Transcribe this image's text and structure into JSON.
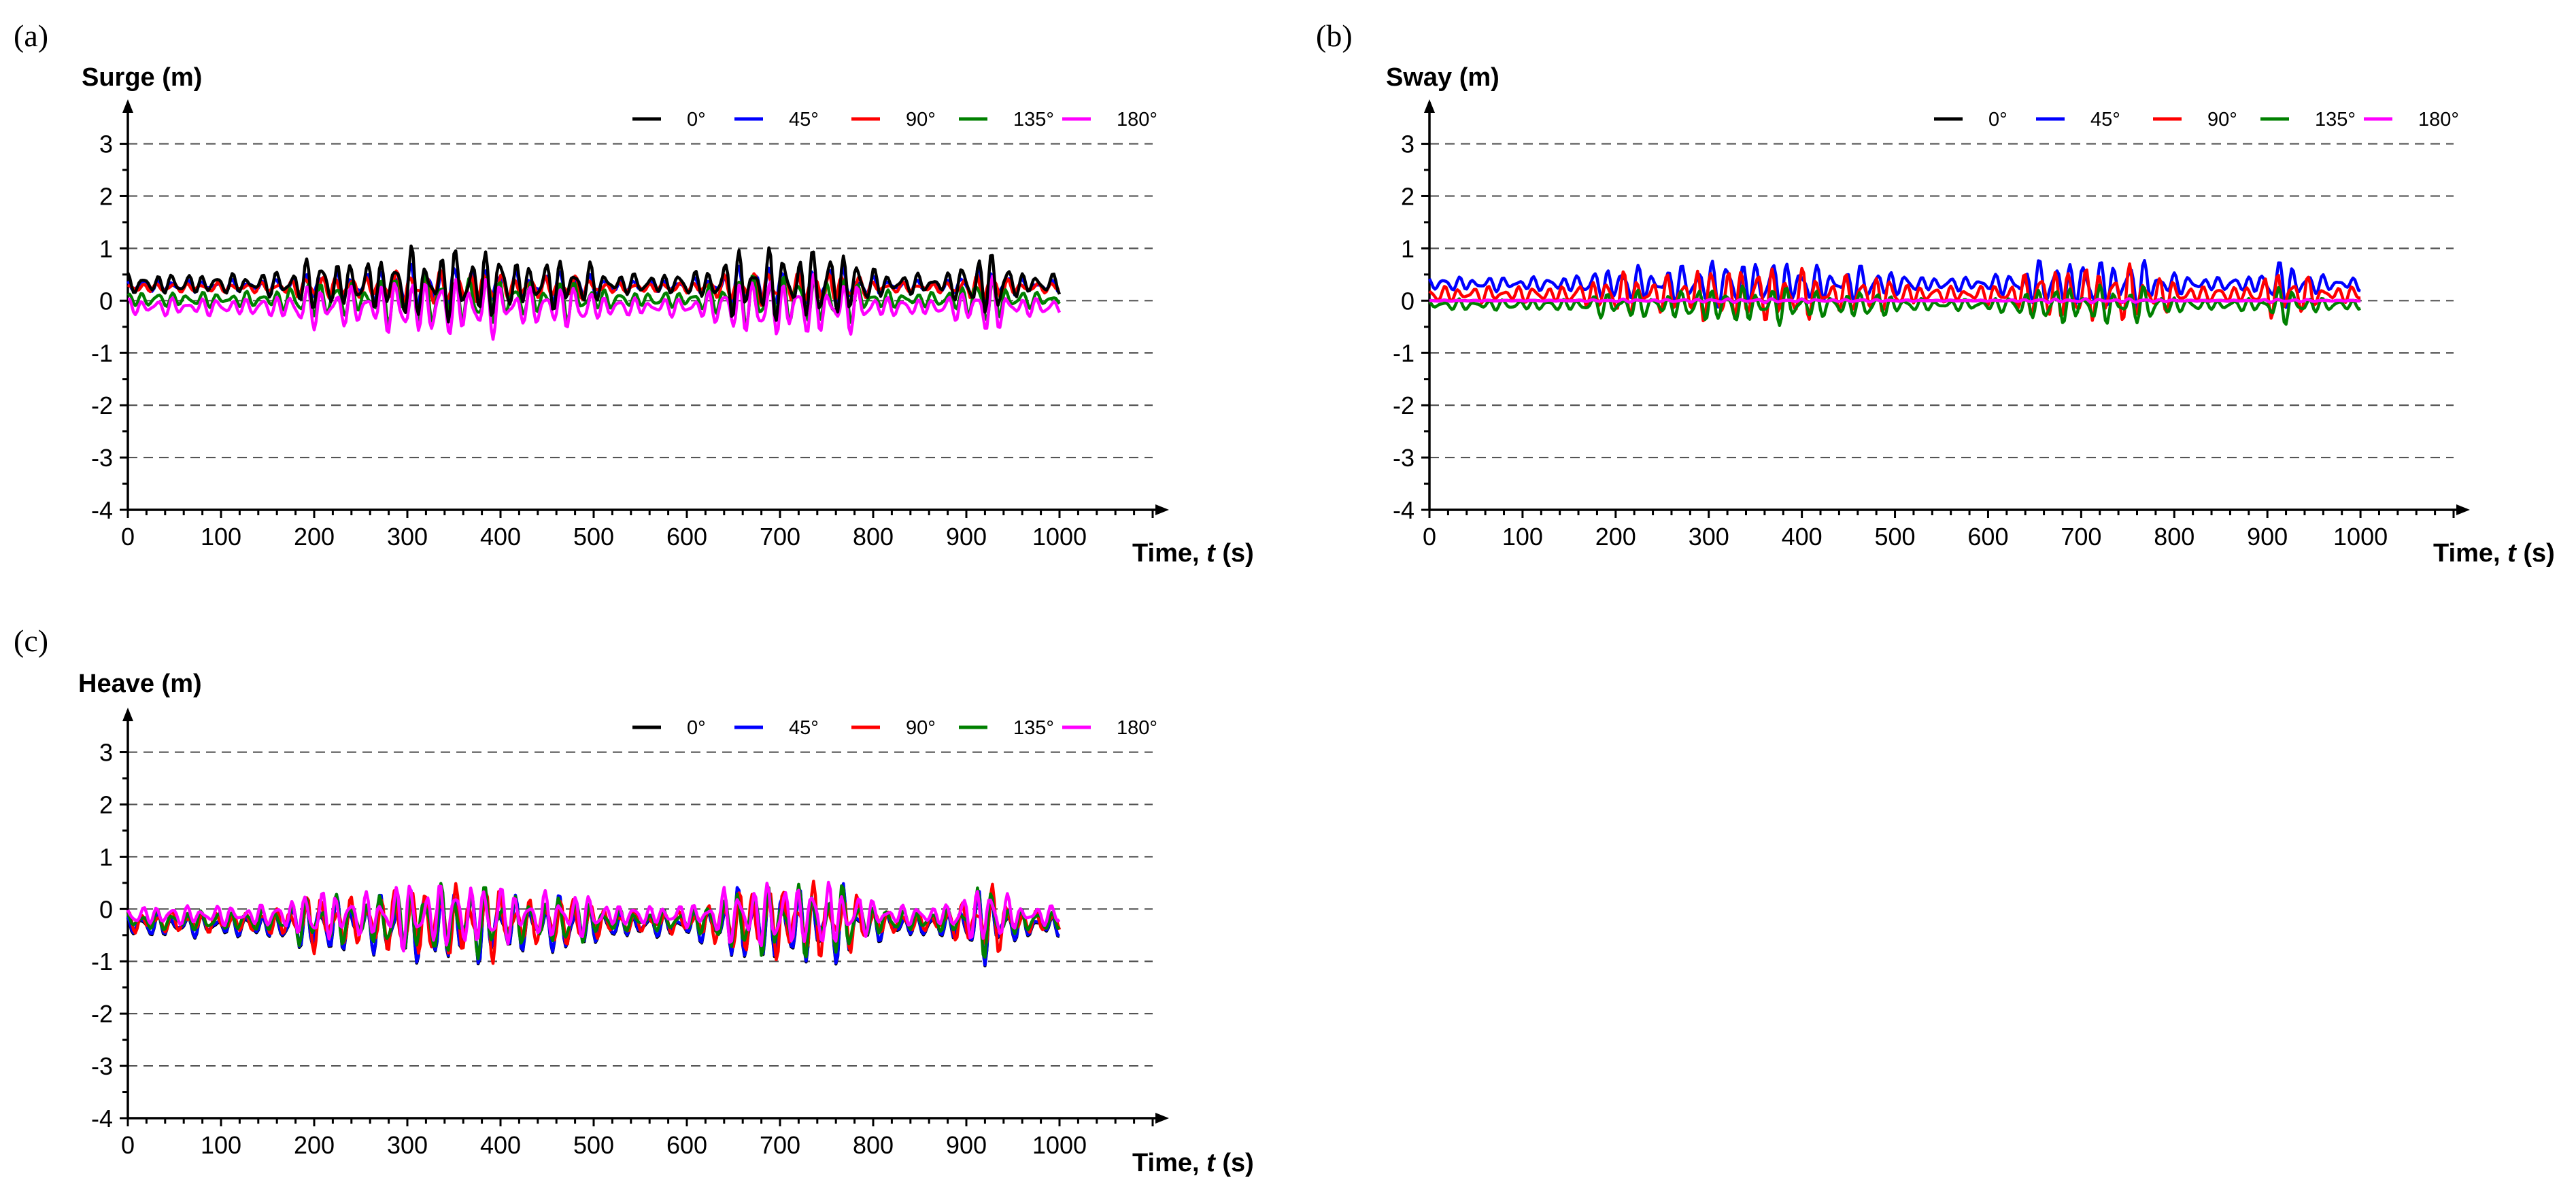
{
  "chart_data": [
    {
      "type": "line",
      "panel": "(a)",
      "ylabel": "Surge (m)",
      "xlabel": "Time, t (s)",
      "xlabel_prefix": "Time, ",
      "xlabel_var": "t",
      "xlabel_suffix": " (s)",
      "xlim": [
        0,
        1100
      ],
      "ylim": [
        -4,
        3.8
      ],
      "xticks": [
        0,
        100,
        200,
        300,
        400,
        500,
        600,
        700,
        800,
        900,
        1000
      ],
      "yticks": [
        -4,
        -3,
        -2,
        -1,
        0,
        1,
        2,
        3
      ],
      "grid": "horizontal dashed",
      "legend": "top-right",
      "series": [
        {
          "name": "0°",
          "color": "#000000",
          "mean": 0.32,
          "amplitude": 0.38,
          "seed": 11
        },
        {
          "name": "45°",
          "color": "#0000ff",
          "mean": 0.28,
          "amplitude": 0.22,
          "seed": 23
        },
        {
          "name": "90°",
          "color": "#ff0000",
          "mean": 0.25,
          "amplitude": 0.18,
          "seed": 37
        },
        {
          "name": "135°",
          "color": "#008000",
          "mean": 0.02,
          "amplitude": 0.28,
          "seed": 41
        },
        {
          "name": "180°",
          "color": "#ff00ff",
          "mean": -0.12,
          "amplitude": 0.32,
          "seed": 53
        }
      ]
    },
    {
      "type": "line",
      "panel": "(b)",
      "ylabel": "Sway (m)",
      "xlabel": "Time, t (s)",
      "xlabel_prefix": "Time, ",
      "xlabel_var": "t",
      "xlabel_suffix": " (s)",
      "xlim": [
        0,
        1100
      ],
      "ylim": [
        -4,
        3.8
      ],
      "xticks": [
        0,
        100,
        200,
        300,
        400,
        500,
        600,
        700,
        800,
        900,
        1000
      ],
      "yticks": [
        -4,
        -3,
        -2,
        -1,
        0,
        1,
        2,
        3
      ],
      "grid": "horizontal dashed",
      "legend": "top-right",
      "series": [
        {
          "name": "0°",
          "color": "#000000",
          "mean": 0.0,
          "amplitude": 0.02,
          "seed": 61
        },
        {
          "name": "45°",
          "color": "#0000ff",
          "mean": 0.32,
          "amplitude": 0.26,
          "seed": 67
        },
        {
          "name": "90°",
          "color": "#ff0000",
          "mean": 0.12,
          "amplitude": 0.3,
          "seed": 71
        },
        {
          "name": "135°",
          "color": "#008000",
          "mean": -0.08,
          "amplitude": 0.2,
          "seed": 79
        },
        {
          "name": "180°",
          "color": "#ff00ff",
          "mean": 0.0,
          "amplitude": 0.02,
          "seed": 83
        }
      ]
    },
    {
      "type": "line",
      "panel": "(c)",
      "ylabel": "Heave (m)",
      "xlabel": "Time, t (s)",
      "xlabel_prefix": "Time, ",
      "xlabel_var": "t",
      "xlabel_suffix": " (s)",
      "xlim": [
        0,
        1100
      ],
      "ylim": [
        -4,
        3.8
      ],
      "xticks": [
        0,
        100,
        200,
        300,
        400,
        500,
        600,
        700,
        800,
        900,
        1000
      ],
      "yticks": [
        -4,
        -3,
        -2,
        -1,
        0,
        1,
        2,
        3
      ],
      "grid": "horizontal dashed",
      "legend": "top-right",
      "series": [
        {
          "name": "0°",
          "color": "#000000",
          "mean": -0.32,
          "amplitude": 0.42,
          "seed": 89
        },
        {
          "name": "45°",
          "color": "#0000ff",
          "mean": -0.3,
          "amplitude": 0.42,
          "seed": 89
        },
        {
          "name": "90°",
          "color": "#ff0000",
          "mean": -0.25,
          "amplitude": 0.4,
          "seed": 97
        },
        {
          "name": "135°",
          "color": "#008000",
          "mean": -0.22,
          "amplitude": 0.38,
          "seed": 101
        },
        {
          "name": "180°",
          "color": "#ff00ff",
          "mean": -0.12,
          "amplitude": 0.36,
          "seed": 103
        }
      ]
    }
  ]
}
